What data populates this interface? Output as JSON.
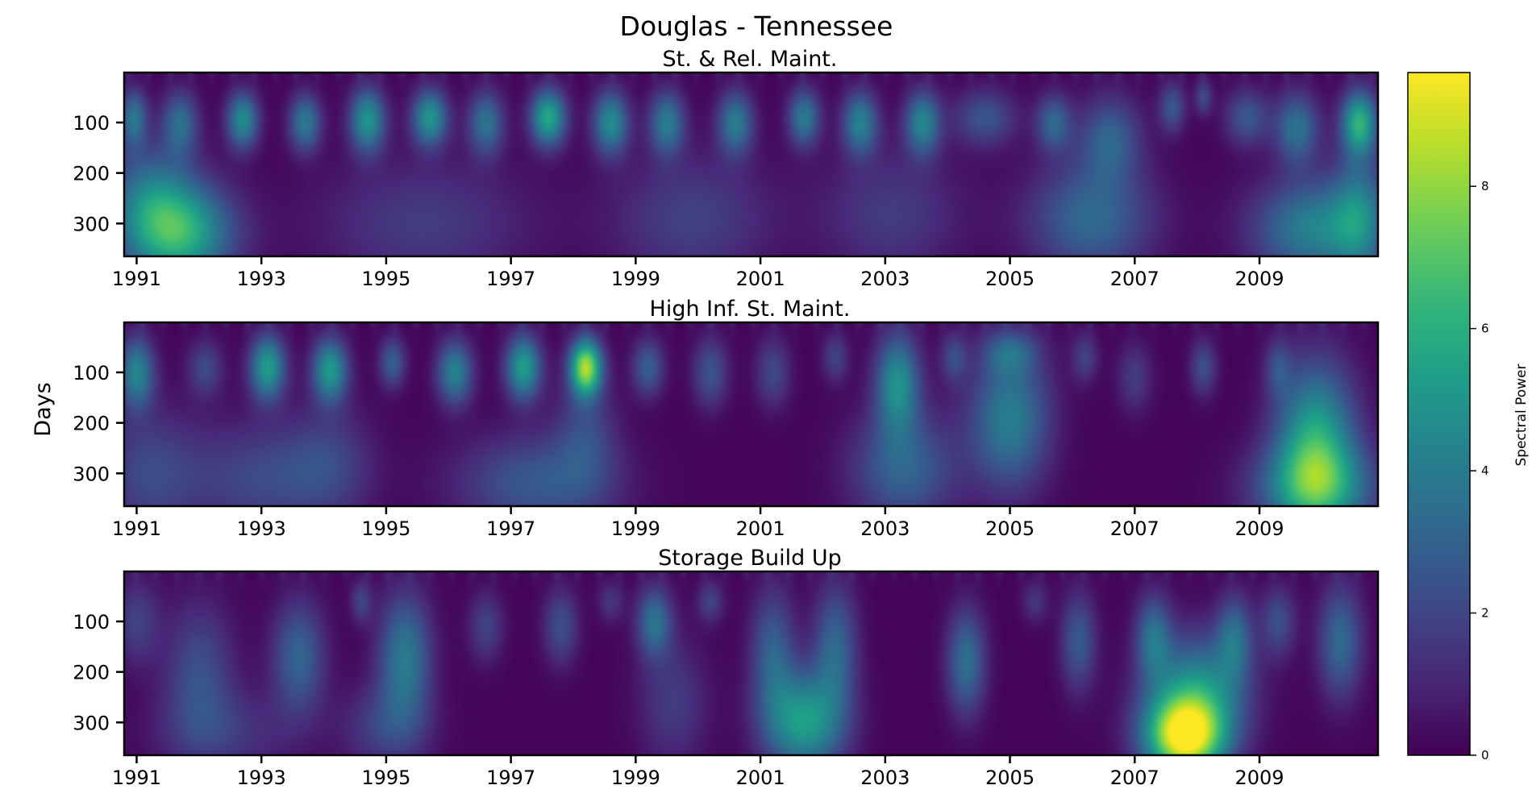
{
  "figure": {
    "title": "Douglas - Tennessee",
    "ylabel": "Days"
  },
  "colormap": {
    "name": "viridis",
    "stops": [
      "#440154",
      "#482878",
      "#3e4a89",
      "#31688e",
      "#26828e",
      "#1f9e89",
      "#35b779",
      "#6ece58",
      "#b5de2b",
      "#fde725"
    ]
  },
  "chart_data": [
    {
      "type": "heatmap",
      "title": "St. & Rel. Maint.",
      "xticks": [
        "1991",
        "1993",
        "1995",
        "1997",
        "1999",
        "2001",
        "2003",
        "2005",
        "2007",
        "2009"
      ],
      "yticks": [
        100,
        200,
        300
      ],
      "xlim": [
        1990.8,
        2010.9
      ],
      "ylim": [
        365,
        1
      ],
      "blobs": [
        {
          "x": 1991.7,
          "y": 320,
          "v": 5.6,
          "sx": 0.6,
          "sy": 70
        },
        {
          "x": 1991.2,
          "y": 250,
          "v": 3.0,
          "sx": 0.5,
          "sy": 80
        },
        {
          "x": 1990.95,
          "y": 90,
          "v": 3.5,
          "sx": 0.15,
          "sy": 40
        },
        {
          "x": 1991.7,
          "y": 100,
          "v": 3.2,
          "sx": 0.2,
          "sy": 45
        },
        {
          "x": 1992.7,
          "y": 95,
          "v": 4.5,
          "sx": 0.18,
          "sy": 40
        },
        {
          "x": 1993.7,
          "y": 100,
          "v": 3.8,
          "sx": 0.18,
          "sy": 40
        },
        {
          "x": 1994.7,
          "y": 95,
          "v": 4.8,
          "sx": 0.2,
          "sy": 45
        },
        {
          "x": 1995.7,
          "y": 90,
          "v": 4.8,
          "sx": 0.2,
          "sy": 40
        },
        {
          "x": 1995.6,
          "y": 300,
          "v": 1.6,
          "sx": 1.2,
          "sy": 90
        },
        {
          "x": 1996.6,
          "y": 100,
          "v": 3.5,
          "sx": 0.2,
          "sy": 45
        },
        {
          "x": 1997.6,
          "y": 90,
          "v": 5.6,
          "sx": 0.2,
          "sy": 40
        },
        {
          "x": 1998.6,
          "y": 100,
          "v": 4.5,
          "sx": 0.2,
          "sy": 45
        },
        {
          "x": 1999.5,
          "y": 100,
          "v": 3.8,
          "sx": 0.2,
          "sy": 45
        },
        {
          "x": 1999.9,
          "y": 290,
          "v": 1.8,
          "sx": 0.9,
          "sy": 90
        },
        {
          "x": 2000.6,
          "y": 100,
          "v": 3.8,
          "sx": 0.2,
          "sy": 45
        },
        {
          "x": 2001.7,
          "y": 90,
          "v": 3.8,
          "sx": 0.18,
          "sy": 40
        },
        {
          "x": 2002.6,
          "y": 100,
          "v": 4.0,
          "sx": 0.2,
          "sy": 45
        },
        {
          "x": 2003.6,
          "y": 100,
          "v": 4.2,
          "sx": 0.2,
          "sy": 45
        },
        {
          "x": 2003.1,
          "y": 280,
          "v": 1.6,
          "sx": 0.8,
          "sy": 90
        },
        {
          "x": 2004.6,
          "y": 90,
          "v": 2.4,
          "sx": 0.35,
          "sy": 40
        },
        {
          "x": 2005.7,
          "y": 100,
          "v": 3.0,
          "sx": 0.2,
          "sy": 40
        },
        {
          "x": 2006.3,
          "y": 290,
          "v": 3.2,
          "sx": 0.7,
          "sy": 80
        },
        {
          "x": 2006.6,
          "y": 130,
          "v": 2.8,
          "sx": 0.35,
          "sy": 60
        },
        {
          "x": 2007.6,
          "y": 70,
          "v": 2.5,
          "sx": 0.15,
          "sy": 35
        },
        {
          "x": 2008.1,
          "y": 50,
          "v": 2.0,
          "sx": 0.1,
          "sy": 25
        },
        {
          "x": 2008.8,
          "y": 90,
          "v": 2.5,
          "sx": 0.25,
          "sy": 40
        },
        {
          "x": 2009.6,
          "y": 110,
          "v": 3.5,
          "sx": 0.25,
          "sy": 50
        },
        {
          "x": 2009.9,
          "y": 310,
          "v": 4.2,
          "sx": 0.7,
          "sy": 70
        },
        {
          "x": 2010.6,
          "y": 100,
          "v": 5.8,
          "sx": 0.2,
          "sy": 45
        },
        {
          "x": 2010.6,
          "y": 280,
          "v": 3.0,
          "sx": 0.3,
          "sy": 90
        }
      ]
    },
    {
      "type": "heatmap",
      "title": "High Inf. St. Maint.",
      "xticks": [
        "1991",
        "1993",
        "1995",
        "1997",
        "1999",
        "2001",
        "2003",
        "2005",
        "2007",
        "2009"
      ],
      "yticks": [
        100,
        200,
        300
      ],
      "xlim": [
        1990.8,
        2010.9
      ],
      "ylim": [
        365,
        1
      ],
      "blobs": [
        {
          "x": 1991.0,
          "y": 100,
          "v": 4.2,
          "sx": 0.2,
          "sy": 50
        },
        {
          "x": 1991.2,
          "y": 300,
          "v": 2.0,
          "sx": 0.6,
          "sy": 90
        },
        {
          "x": 1992.1,
          "y": 90,
          "v": 2.0,
          "sx": 0.2,
          "sy": 40
        },
        {
          "x": 1993.1,
          "y": 90,
          "v": 5.2,
          "sx": 0.2,
          "sy": 45
        },
        {
          "x": 1993.0,
          "y": 310,
          "v": 2.0,
          "sx": 0.8,
          "sy": 80
        },
        {
          "x": 1994.1,
          "y": 95,
          "v": 5.0,
          "sx": 0.2,
          "sy": 45
        },
        {
          "x": 1994.1,
          "y": 280,
          "v": 1.6,
          "sx": 0.5,
          "sy": 80
        },
        {
          "x": 1995.1,
          "y": 80,
          "v": 2.8,
          "sx": 0.15,
          "sy": 35
        },
        {
          "x": 1996.1,
          "y": 100,
          "v": 4.2,
          "sx": 0.2,
          "sy": 45
        },
        {
          "x": 1997.2,
          "y": 90,
          "v": 5.2,
          "sx": 0.2,
          "sy": 45
        },
        {
          "x": 1997.4,
          "y": 320,
          "v": 2.6,
          "sx": 0.9,
          "sy": 70
        },
        {
          "x": 1998.2,
          "y": 90,
          "v": 8.0,
          "sx": 0.18,
          "sy": 40
        },
        {
          "x": 1998.2,
          "y": 220,
          "v": 1.8,
          "sx": 0.35,
          "sy": 80
        },
        {
          "x": 1999.2,
          "y": 90,
          "v": 2.8,
          "sx": 0.18,
          "sy": 40
        },
        {
          "x": 2000.2,
          "y": 100,
          "v": 2.4,
          "sx": 0.2,
          "sy": 50
        },
        {
          "x": 2001.2,
          "y": 100,
          "v": 2.0,
          "sx": 0.2,
          "sy": 50
        },
        {
          "x": 2002.2,
          "y": 70,
          "v": 1.8,
          "sx": 0.15,
          "sy": 35
        },
        {
          "x": 2003.2,
          "y": 120,
          "v": 4.6,
          "sx": 0.25,
          "sy": 70
        },
        {
          "x": 2003.3,
          "y": 290,
          "v": 3.0,
          "sx": 0.6,
          "sy": 80
        },
        {
          "x": 2004.1,
          "y": 70,
          "v": 2.0,
          "sx": 0.15,
          "sy": 35
        },
        {
          "x": 2005.0,
          "y": 190,
          "v": 4.0,
          "sx": 0.45,
          "sy": 100
        },
        {
          "x": 2005.0,
          "y": 60,
          "v": 2.2,
          "sx": 0.3,
          "sy": 30
        },
        {
          "x": 2006.2,
          "y": 70,
          "v": 1.8,
          "sx": 0.15,
          "sy": 35
        },
        {
          "x": 2007.0,
          "y": 110,
          "v": 1.6,
          "sx": 0.2,
          "sy": 50
        },
        {
          "x": 2008.1,
          "y": 90,
          "v": 2.2,
          "sx": 0.15,
          "sy": 40
        },
        {
          "x": 2009.3,
          "y": 90,
          "v": 1.8,
          "sx": 0.15,
          "sy": 40
        },
        {
          "x": 2009.9,
          "y": 240,
          "v": 5.6,
          "sx": 0.45,
          "sy": 110
        },
        {
          "x": 2009.9,
          "y": 330,
          "v": 4.0,
          "sx": 0.7,
          "sy": 60
        }
      ]
    },
    {
      "type": "heatmap",
      "title": "Storage Build Up",
      "xticks": [
        "1991",
        "1993",
        "1995",
        "1997",
        "1999",
        "2001",
        "2003",
        "2005",
        "2007",
        "2009"
      ],
      "yticks": [
        100,
        200,
        300
      ],
      "xlim": [
        1990.8,
        2010.9
      ],
      "ylim": [
        365,
        1
      ],
      "blobs": [
        {
          "x": 1991.0,
          "y": 100,
          "v": 1.8,
          "sx": 0.25,
          "sy": 60
        },
        {
          "x": 1992.0,
          "y": 200,
          "v": 2.2,
          "sx": 0.4,
          "sy": 100
        },
        {
          "x": 1992.4,
          "y": 320,
          "v": 1.4,
          "sx": 0.8,
          "sy": 60
        },
        {
          "x": 1993.6,
          "y": 170,
          "v": 3.0,
          "sx": 0.3,
          "sy": 80
        },
        {
          "x": 1994.6,
          "y": 60,
          "v": 1.8,
          "sx": 0.12,
          "sy": 30
        },
        {
          "x": 1995.3,
          "y": 170,
          "v": 3.8,
          "sx": 0.3,
          "sy": 90
        },
        {
          "x": 1995.0,
          "y": 310,
          "v": 1.8,
          "sx": 0.5,
          "sy": 60
        },
        {
          "x": 1996.6,
          "y": 110,
          "v": 1.8,
          "sx": 0.2,
          "sy": 50
        },
        {
          "x": 1997.8,
          "y": 110,
          "v": 2.2,
          "sx": 0.2,
          "sy": 55
        },
        {
          "x": 1998.6,
          "y": 60,
          "v": 1.4,
          "sx": 0.15,
          "sy": 30
        },
        {
          "x": 1999.3,
          "y": 100,
          "v": 3.4,
          "sx": 0.2,
          "sy": 50
        },
        {
          "x": 1999.6,
          "y": 260,
          "v": 1.6,
          "sx": 0.4,
          "sy": 90
        },
        {
          "x": 2000.2,
          "y": 60,
          "v": 1.8,
          "sx": 0.15,
          "sy": 30
        },
        {
          "x": 2001.7,
          "y": 300,
          "v": 5.2,
          "sx": 0.45,
          "sy": 70
        },
        {
          "x": 2001.2,
          "y": 160,
          "v": 2.8,
          "sx": 0.25,
          "sy": 90
        },
        {
          "x": 2002.2,
          "y": 150,
          "v": 3.0,
          "sx": 0.25,
          "sy": 90
        },
        {
          "x": 2004.3,
          "y": 180,
          "v": 3.4,
          "sx": 0.22,
          "sy": 75
        },
        {
          "x": 2005.4,
          "y": 60,
          "v": 1.4,
          "sx": 0.15,
          "sy": 30
        },
        {
          "x": 2006.1,
          "y": 140,
          "v": 2.6,
          "sx": 0.2,
          "sy": 70
        },
        {
          "x": 2007.8,
          "y": 330,
          "v": 8.8,
          "sx": 0.45,
          "sy": 55
        },
        {
          "x": 2008.0,
          "y": 240,
          "v": 4.6,
          "sx": 0.55,
          "sy": 80
        },
        {
          "x": 2007.3,
          "y": 130,
          "v": 3.2,
          "sx": 0.2,
          "sy": 60
        },
        {
          "x": 2008.6,
          "y": 130,
          "v": 3.0,
          "sx": 0.2,
          "sy": 60
        },
        {
          "x": 2009.3,
          "y": 100,
          "v": 2.2,
          "sx": 0.2,
          "sy": 50
        },
        {
          "x": 2010.3,
          "y": 140,
          "v": 3.2,
          "sx": 0.25,
          "sy": 80
        }
      ]
    }
  ],
  "colorbar": {
    "label": "Spectral Power",
    "min": 0,
    "max": 9.6,
    "ticks": [
      0,
      2,
      4,
      6,
      8
    ]
  }
}
